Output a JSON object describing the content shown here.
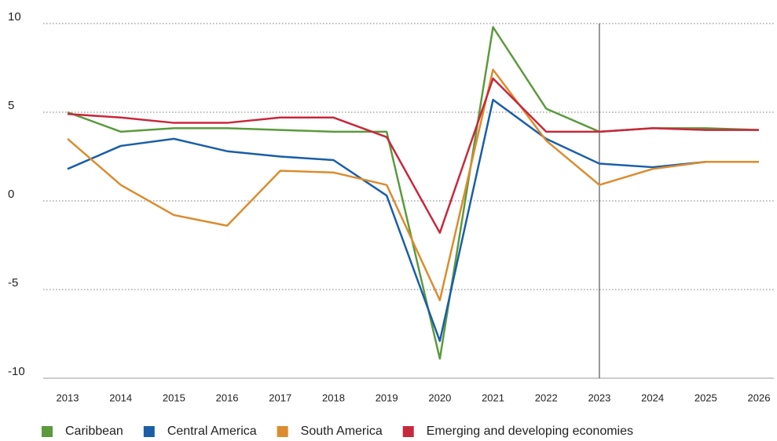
{
  "chart_data": {
    "type": "line",
    "categories": [
      "2013",
      "2014",
      "2015",
      "2016",
      "2017",
      "2018",
      "2019",
      "2020",
      "2021",
      "2022",
      "2023",
      "2024",
      "2025",
      "2026"
    ],
    "series": [
      {
        "name": "Caribbean",
        "color": "#5b9a3d",
        "values": [
          5.0,
          3.9,
          4.1,
          4.1,
          4.0,
          3.9,
          3.9,
          -8.9,
          9.8,
          5.2,
          3.9,
          4.1,
          4.1,
          4.0
        ]
      },
      {
        "name": "Central America",
        "color": "#1a5ea8",
        "values": [
          1.8,
          3.1,
          3.5,
          2.8,
          2.5,
          2.3,
          0.3,
          -7.9,
          5.7,
          3.5,
          2.1,
          1.9,
          2.2,
          2.2
        ]
      },
      {
        "name": "South America",
        "color": "#db8c2e",
        "values": [
          3.5,
          0.9,
          -0.8,
          -1.4,
          1.7,
          1.6,
          0.9,
          -5.6,
          7.4,
          3.4,
          0.9,
          1.8,
          2.2,
          2.2
        ]
      },
      {
        "name": "Emerging and developing economies",
        "color": "#c8283c",
        "values": [
          4.9,
          4.7,
          4.4,
          4.4,
          4.7,
          4.7,
          3.6,
          -1.8,
          6.9,
          3.9,
          3.9,
          4.1,
          4.0,
          4.0
        ]
      }
    ],
    "ylim": [
      -10,
      10
    ],
    "yticks": [
      10,
      5,
      0,
      -5,
      -10
    ],
    "grid": true,
    "divider_category": "2023",
    "legend": "bottom"
  }
}
